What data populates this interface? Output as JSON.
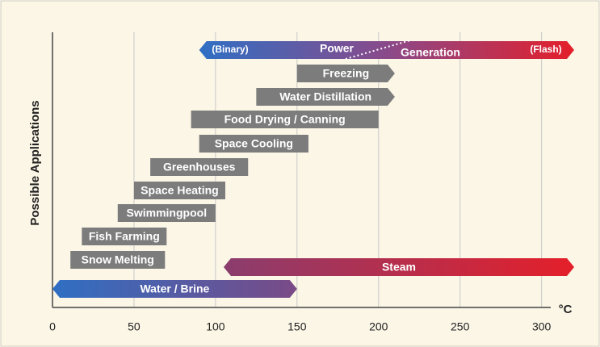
{
  "chart_data": {
    "type": "range-bar",
    "y_label": "Possible Applications",
    "x_unit": "°C",
    "xlim": [
      0,
      320
    ],
    "xticks": [
      0,
      50,
      100,
      150,
      200,
      250,
      300
    ],
    "grid": true,
    "bars": [
      {
        "labels": [
          "(Binary)",
          "Power",
          "Generation",
          "(Flash)"
        ],
        "range": [
          90,
          320
        ],
        "colors": [
          "#2f6fc4",
          "#8a4a8a",
          "#e41f2a"
        ],
        "ends": "both"
      },
      {
        "name": "Freezing",
        "range": [
          150,
          210
        ],
        "color": "#7c7c7c",
        "ends": "right"
      },
      {
        "name": "Water Distillation",
        "range": [
          125,
          210
        ],
        "color": "#7c7c7c",
        "ends": "right"
      },
      {
        "name": "Food Drying / Canning",
        "range": [
          85,
          200
        ],
        "color": "#7c7c7c",
        "ends": "none"
      },
      {
        "name": "Space Cooling",
        "range": [
          90,
          157
        ],
        "color": "#7c7c7c",
        "ends": "none"
      },
      {
        "name": "Greenhouses",
        "range": [
          60,
          120
        ],
        "color": "#7c7c7c",
        "ends": "none"
      },
      {
        "name": "Space Heating",
        "range": [
          50,
          106
        ],
        "color": "#7c7c7c",
        "ends": "none"
      },
      {
        "name": "Swimmingpool",
        "range": [
          40,
          100
        ],
        "color": "#7c7c7c",
        "ends": "none"
      },
      {
        "name": "Fish Farming",
        "range": [
          18,
          70
        ],
        "color": "#7c7c7c",
        "ends": "none"
      },
      {
        "name": "Snow Melting",
        "range": [
          11,
          69
        ],
        "color": "#7c7c7c",
        "ends": "none"
      },
      {
        "name": "Steam",
        "range": [
          105,
          320
        ],
        "colors": [
          "#8a3d6e",
          "#e41f2a"
        ],
        "ends": "both"
      },
      {
        "name": "Water / Brine",
        "range": [
          0,
          150
        ],
        "colors": [
          "#2f6fc4",
          "#7a4a86"
        ],
        "ends": "both"
      }
    ]
  }
}
